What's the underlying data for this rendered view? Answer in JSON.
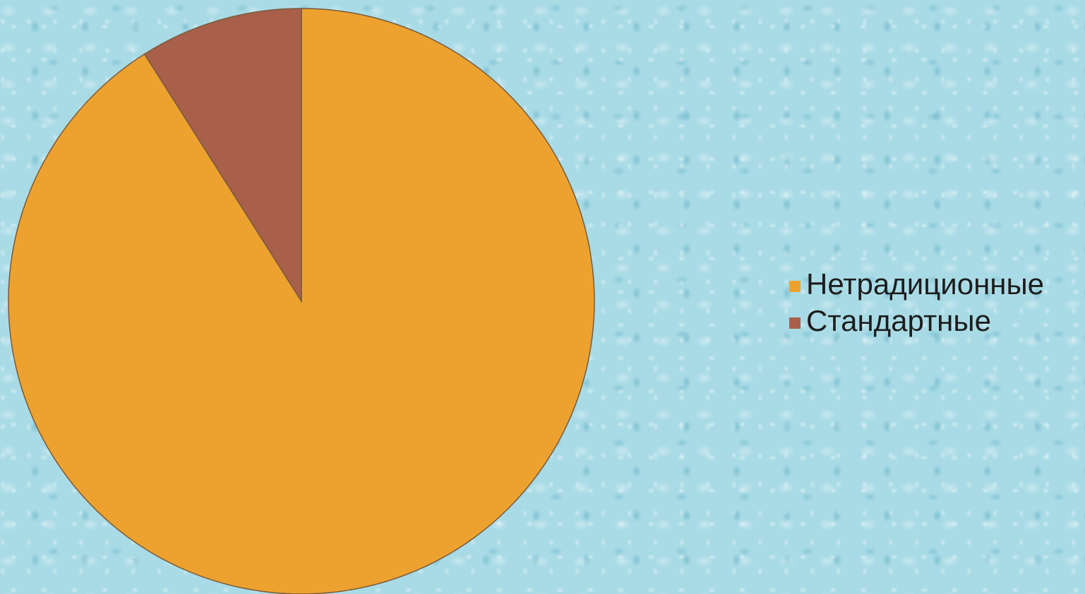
{
  "chart_data": {
    "type": "pie",
    "title": "",
    "categories": [
      "Нетрадиционные",
      "Стандартные"
    ],
    "values": [
      91,
      9
    ],
    "unit": "%",
    "colors": [
      "#eda22f",
      "#a8604a"
    ],
    "start_angle_deg": -90,
    "direction": "clockwise",
    "legend_position": "right"
  },
  "legend": {
    "items": [
      {
        "label": "Нетрадиционные",
        "color": "#eda22f"
      },
      {
        "label": "Стандартные",
        "color": "#a8604a"
      }
    ]
  }
}
